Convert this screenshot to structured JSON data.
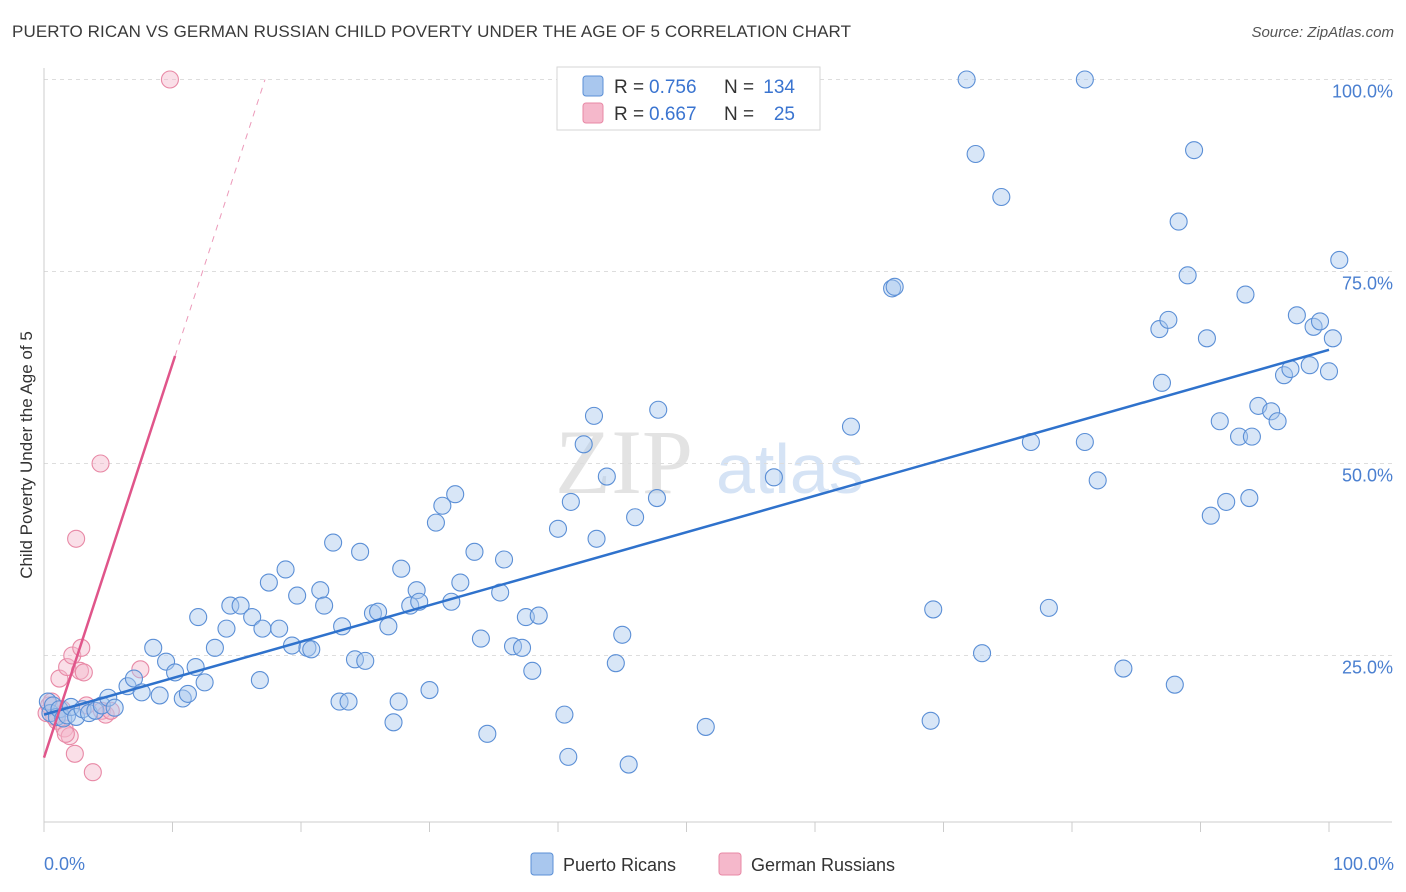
{
  "title": "PUERTO RICAN VS GERMAN RUSSIAN CHILD POVERTY UNDER THE AGE OF 5 CORRELATION CHART",
  "source": "Source: ZipAtlas.com",
  "watermark": {
    "zip": "ZIP",
    "atlas": "atlas"
  },
  "colors": {
    "blue_fill": "#a9c7ee",
    "blue_stroke": "#5b8fd6",
    "blue_line": "#2f72cc",
    "pink_fill": "#f5b8cb",
    "pink_stroke": "#e889a6",
    "pink_line": "#e0558a",
    "grid": "#dddddd",
    "axis_text": "#4a7fd0"
  },
  "legend": {
    "rows": [
      {
        "r_label": "R =",
        "r_value": "0.756",
        "n_label": "N =",
        "n_value": "134",
        "color": "blue"
      },
      {
        "r_label": "R =",
        "r_value": "0.667",
        "n_label": "N =",
        "n_value": "25",
        "color": "pink"
      }
    ]
  },
  "bottom_legend": [
    "Puerto Ricans",
    "German Russians"
  ],
  "chart_data": {
    "type": "scatter",
    "title": "PUERTO RICAN VS GERMAN RUSSIAN CHILD POVERTY UNDER THE AGE OF 5 CORRELATION CHART",
    "xlabel": "",
    "ylabel": "Child Poverty Under the Age of 5",
    "xlim": [
      0,
      100
    ],
    "ylim": [
      0,
      100
    ],
    "x_tick_labels": [
      "0.0%",
      "100.0%"
    ],
    "y_tick_labels": [
      "25.0%",
      "50.0%",
      "75.0%",
      "100.0%"
    ],
    "y_ticks": [
      25,
      50,
      75,
      100
    ],
    "series": [
      {
        "name": "Puerto Ricans",
        "color": "blue",
        "R": 0.756,
        "N": 134,
        "trend": {
          "x": [
            0,
            100
          ],
          "y": [
            17.3,
            64.8
          ],
          "dashed_extension": false
        },
        "points": [
          [
            0.3,
            19
          ],
          [
            0.5,
            17.5
          ],
          [
            0.7,
            18.5
          ],
          [
            1.0,
            17
          ],
          [
            1.2,
            18
          ],
          [
            1.5,
            16.8
          ],
          [
            1.8,
            17.2
          ],
          [
            2.1,
            18.3
          ],
          [
            2.5,
            17
          ],
          [
            3.0,
            18
          ],
          [
            3.5,
            17.5
          ],
          [
            4.0,
            17.8
          ],
          [
            4.5,
            18.5
          ],
          [
            5.0,
            19.5
          ],
          [
            5.5,
            18.2
          ],
          [
            6.5,
            21
          ],
          [
            7.0,
            22
          ],
          [
            7.6,
            20.2
          ],
          [
            8.5,
            26
          ],
          [
            9.5,
            24.2
          ],
          [
            9.0,
            19.8
          ],
          [
            10.2,
            22.8
          ],
          [
            10.8,
            19.4
          ],
          [
            11.2,
            20
          ],
          [
            11.8,
            23.5
          ],
          [
            12.5,
            21.5
          ],
          [
            12.0,
            30
          ],
          [
            13.3,
            26
          ],
          [
            14.2,
            28.5
          ],
          [
            14.5,
            31.5
          ],
          [
            15.3,
            31.5
          ],
          [
            16.2,
            30
          ],
          [
            16.8,
            21.8
          ],
          [
            17.0,
            28.5
          ],
          [
            17.5,
            34.5
          ],
          [
            18.3,
            28.5
          ],
          [
            18.8,
            36.2
          ],
          [
            19.3,
            26.3
          ],
          [
            19.7,
            32.8
          ],
          [
            20.5,
            26
          ],
          [
            20.8,
            25.8
          ],
          [
            21.5,
            33.5
          ],
          [
            21.8,
            31.5
          ],
          [
            22.5,
            39.7
          ],
          [
            23.0,
            19
          ],
          [
            23.2,
            28.8
          ],
          [
            23.7,
            19
          ],
          [
            24.2,
            24.5
          ],
          [
            24.6,
            38.5
          ],
          [
            25.0,
            24.3
          ],
          [
            25.6,
            30.5
          ],
          [
            26.0,
            30.7
          ],
          [
            26.8,
            28.8
          ],
          [
            27.2,
            16.3
          ],
          [
            27.6,
            19
          ],
          [
            27.8,
            36.3
          ],
          [
            28.5,
            31.5
          ],
          [
            29.0,
            33.5
          ],
          [
            29.2,
            32
          ],
          [
            30.0,
            20.5
          ],
          [
            30.5,
            42.3
          ],
          [
            31.0,
            44.5
          ],
          [
            32.0,
            46
          ],
          [
            31.7,
            32
          ],
          [
            32.4,
            34.5
          ],
          [
            33.5,
            38.5
          ],
          [
            34.0,
            27.2
          ],
          [
            34.5,
            14.8
          ],
          [
            35.5,
            33.2
          ],
          [
            35.8,
            37.5
          ],
          [
            36.5,
            26.2
          ],
          [
            37.2,
            26
          ],
          [
            37.5,
            30
          ],
          [
            38.0,
            23
          ],
          [
            38.5,
            30.2
          ],
          [
            40.0,
            41.5
          ],
          [
            40.5,
            17.3
          ],
          [
            40.8,
            11.8
          ],
          [
            41.0,
            45
          ],
          [
            42.0,
            52.5
          ],
          [
            42.8,
            56.2
          ],
          [
            43.0,
            40.2
          ],
          [
            43.8,
            48.3
          ],
          [
            44.5,
            24
          ],
          [
            45.0,
            27.7
          ],
          [
            45.5,
            10.8
          ],
          [
            46.0,
            43
          ],
          [
            47.8,
            57
          ],
          [
            47.7,
            45.5
          ],
          [
            51.5,
            15.7
          ],
          [
            56.8,
            48.2
          ],
          [
            62.8,
            54.8
          ],
          [
            66.0,
            72.8
          ],
          [
            66.2,
            73
          ],
          [
            69.0,
            16.5
          ],
          [
            69.2,
            31
          ],
          [
            71.8,
            100
          ],
          [
            72.5,
            90.3
          ],
          [
            73.0,
            25.3
          ],
          [
            74.5,
            84.7
          ],
          [
            76.8,
            52.8
          ],
          [
            78.2,
            31.2
          ],
          [
            81.0,
            52.8
          ],
          [
            81.0,
            100
          ],
          [
            82.0,
            47.8
          ],
          [
            84.0,
            23.3
          ],
          [
            86.8,
            67.5
          ],
          [
            87.0,
            60.5
          ],
          [
            87.5,
            68.7
          ],
          [
            88.0,
            21.2
          ],
          [
            88.3,
            81.5
          ],
          [
            89.0,
            74.5
          ],
          [
            89.5,
            90.8
          ],
          [
            90.5,
            66.3
          ],
          [
            90.8,
            43.2
          ],
          [
            91.5,
            55.5
          ],
          [
            92.0,
            45
          ],
          [
            93.0,
            53.5
          ],
          [
            93.5,
            72
          ],
          [
            93.8,
            45.5
          ],
          [
            94.0,
            53.5
          ],
          [
            94.5,
            57.5
          ],
          [
            95.5,
            56.8
          ],
          [
            96.0,
            55.5
          ],
          [
            96.5,
            61.5
          ],
          [
            97.0,
            62.3
          ],
          [
            97.5,
            69.3
          ],
          [
            98.5,
            62.8
          ],
          [
            98.8,
            67.8
          ],
          [
            99.3,
            68.5
          ],
          [
            100.0,
            62
          ],
          [
            100.3,
            66.3
          ],
          [
            100.8,
            76.5
          ]
        ]
      },
      {
        "name": "German Russians",
        "color": "pink",
        "R": 0.667,
        "N": 25,
        "trend": {
          "x": [
            0,
            10.2
          ],
          "y": [
            11.7,
            64.0
          ],
          "dashed_extension": true,
          "dash_to": [
            17.2,
            100
          ]
        },
        "points": [
          [
            0.2,
            17.5
          ],
          [
            0.4,
            18.5
          ],
          [
            0.6,
            19
          ],
          [
            0.8,
            17
          ],
          [
            1.0,
            16.5
          ],
          [
            1.2,
            22
          ],
          [
            1.4,
            18
          ],
          [
            1.6,
            15.5
          ],
          [
            1.8,
            23.5
          ],
          [
            2.0,
            14.5
          ],
          [
            2.2,
            25
          ],
          [
            2.4,
            12.2
          ],
          [
            1.7,
            14.8
          ],
          [
            2.5,
            40.2
          ],
          [
            2.8,
            23
          ],
          [
            2.9,
            26
          ],
          [
            3.1,
            22.8
          ],
          [
            3.3,
            18.5
          ],
          [
            3.8,
            9.8
          ],
          [
            4.5,
            17.8
          ],
          [
            4.8,
            17.3
          ],
          [
            5.2,
            17.8
          ],
          [
            4.4,
            50
          ],
          [
            7.5,
            23.2
          ],
          [
            9.8,
            100
          ]
        ]
      }
    ]
  }
}
